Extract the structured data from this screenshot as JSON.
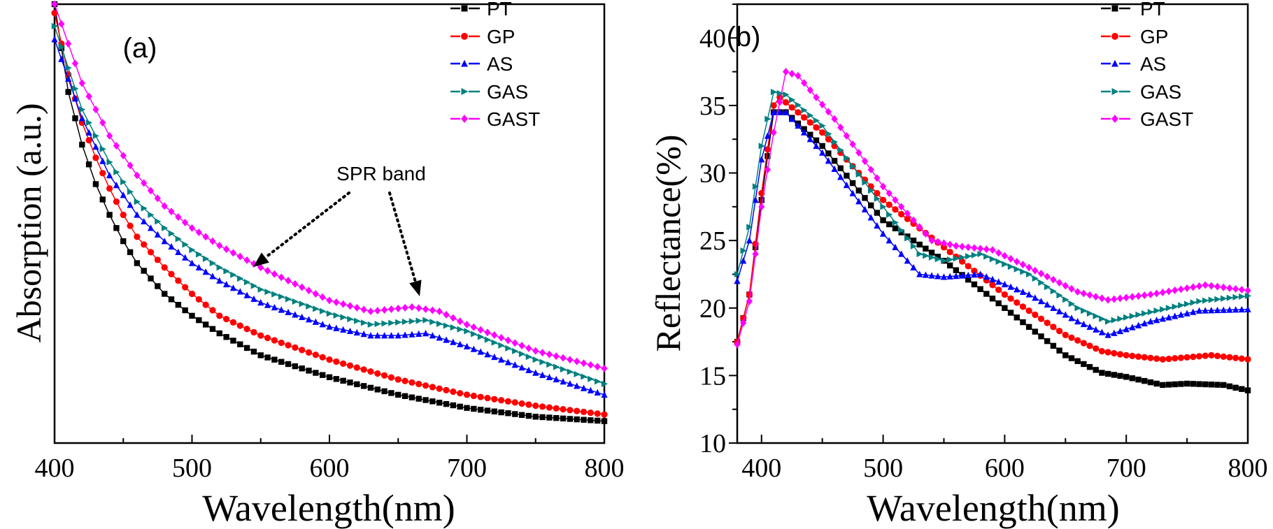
{
  "chart_data": [
    {
      "panel_label": "(a)",
      "type": "line",
      "xlabel": "Wavelength(nm)",
      "ylabel": "Absorption (a.u.)",
      "xlim": [
        400,
        800
      ],
      "ylim": [
        0,
        1
      ],
      "xticks": [
        400,
        500,
        600,
        700,
        800
      ],
      "yticks": [],
      "grid": false,
      "legend": "top-right",
      "annotation": "SPR band",
      "series": [
        {
          "name": "PT",
          "color": "#000000",
          "marker": "square",
          "x": [
            400,
            410,
            420,
            430,
            440,
            450,
            460,
            480,
            500,
            520,
            550,
            600,
            650,
            700,
            750,
            800
          ],
          "y": [
            1.0,
            0.8,
            0.68,
            0.59,
            0.52,
            0.46,
            0.41,
            0.34,
            0.29,
            0.25,
            0.2,
            0.15,
            0.11,
            0.08,
            0.06,
            0.05
          ]
        },
        {
          "name": "GP",
          "color": "#ff0000",
          "marker": "circle",
          "x": [
            400,
            410,
            420,
            430,
            440,
            450,
            460,
            480,
            500,
            520,
            550,
            600,
            650,
            700,
            750,
            800
          ],
          "y": [
            0.98,
            0.84,
            0.73,
            0.65,
            0.58,
            0.52,
            0.47,
            0.4,
            0.34,
            0.29,
            0.245,
            0.19,
            0.145,
            0.11,
            0.085,
            0.065
          ]
        },
        {
          "name": "AS",
          "color": "#0000ff",
          "marker": "triangle-up",
          "x": [
            400,
            420,
            440,
            460,
            480,
            500,
            520,
            550,
            600,
            630,
            650,
            670,
            700,
            750,
            800
          ],
          "y": [
            0.92,
            0.74,
            0.61,
            0.52,
            0.46,
            0.41,
            0.37,
            0.32,
            0.265,
            0.245,
            0.245,
            0.25,
            0.22,
            0.16,
            0.11
          ]
        },
        {
          "name": "GAS",
          "color": "#008080",
          "marker": "triangle-right",
          "x": [
            400,
            420,
            440,
            460,
            480,
            500,
            520,
            550,
            600,
            630,
            670,
            700,
            750,
            800
          ],
          "y": [
            0.95,
            0.76,
            0.64,
            0.55,
            0.49,
            0.44,
            0.4,
            0.35,
            0.295,
            0.27,
            0.28,
            0.255,
            0.19,
            0.135
          ]
        },
        {
          "name": "GAST",
          "color": "#ff00ff",
          "marker": "diamond",
          "x": [
            400,
            420,
            440,
            460,
            480,
            500,
            520,
            550,
            600,
            630,
            660,
            680,
            700,
            750,
            800
          ],
          "y": [
            1.0,
            0.82,
            0.7,
            0.61,
            0.54,
            0.49,
            0.45,
            0.4,
            0.325,
            0.3,
            0.31,
            0.3,
            0.27,
            0.21,
            0.17
          ]
        }
      ]
    },
    {
      "panel_label": "(b)",
      "type": "line",
      "xlabel": "Wavelength(nm)",
      "ylabel": "Reflectance(%)",
      "xlim": [
        380,
        800
      ],
      "ylim": [
        10,
        42.5
      ],
      "xticks": [
        400,
        500,
        600,
        700,
        800
      ],
      "yticks": [
        10,
        15,
        20,
        25,
        30,
        35,
        40
      ],
      "grid": false,
      "legend": "top-right",
      "series": [
        {
          "name": "PT",
          "color": "#000000",
          "marker": "square",
          "x": [
            380,
            390,
            400,
            410,
            420,
            450,
            500,
            550,
            600,
            650,
            680,
            700,
            730,
            750,
            780,
            800
          ],
          "y": [
            17.5,
            21,
            28,
            34.5,
            34.5,
            32,
            26.5,
            23.5,
            20,
            16.5,
            15.2,
            14.9,
            14.3,
            14.4,
            14.3,
            13.9
          ]
        },
        {
          "name": "GP",
          "color": "#ff0000",
          "marker": "circle",
          "x": [
            380,
            390,
            400,
            410,
            415,
            450,
            500,
            550,
            600,
            650,
            680,
            700,
            730,
            770,
            800
          ],
          "y": [
            17.5,
            21,
            28.5,
            35,
            35.6,
            33,
            28,
            24.5,
            21,
            18,
            16.8,
            16.5,
            16.2,
            16.5,
            16.2
          ]
        },
        {
          "name": "AS",
          "color": "#0000ff",
          "marker": "triangle-up",
          "x": [
            380,
            390,
            400,
            410,
            420,
            450,
            500,
            530,
            550,
            580,
            620,
            660,
            685,
            720,
            760,
            800
          ],
          "y": [
            22,
            25,
            31,
            34.5,
            34.5,
            31.5,
            25.5,
            22.5,
            22.3,
            22.5,
            21,
            19,
            18,
            19,
            19.8,
            19.9
          ]
        },
        {
          "name": "GAS",
          "color": "#008080",
          "marker": "triangle-right",
          "x": [
            380,
            390,
            400,
            410,
            420,
            450,
            500,
            530,
            550,
            580,
            620,
            660,
            685,
            720,
            760,
            800
          ],
          "y": [
            22.5,
            26,
            32,
            36,
            35.8,
            33.5,
            27.5,
            24,
            23.5,
            24,
            22.5,
            20,
            19,
            19.7,
            20.5,
            20.9
          ]
        },
        {
          "name": "GAST",
          "color": "#ff00ff",
          "marker": "diamond",
          "x": [
            380,
            390,
            400,
            410,
            420,
            430,
            460,
            500,
            540,
            560,
            590,
            620,
            660,
            685,
            720,
            765,
            800
          ],
          "y": [
            17.3,
            20.5,
            27.5,
            33,
            37.5,
            37.2,
            34,
            29,
            25,
            24.6,
            24.3,
            23,
            21.2,
            20.6,
            21,
            21.7,
            21.3
          ]
        }
      ]
    }
  ]
}
